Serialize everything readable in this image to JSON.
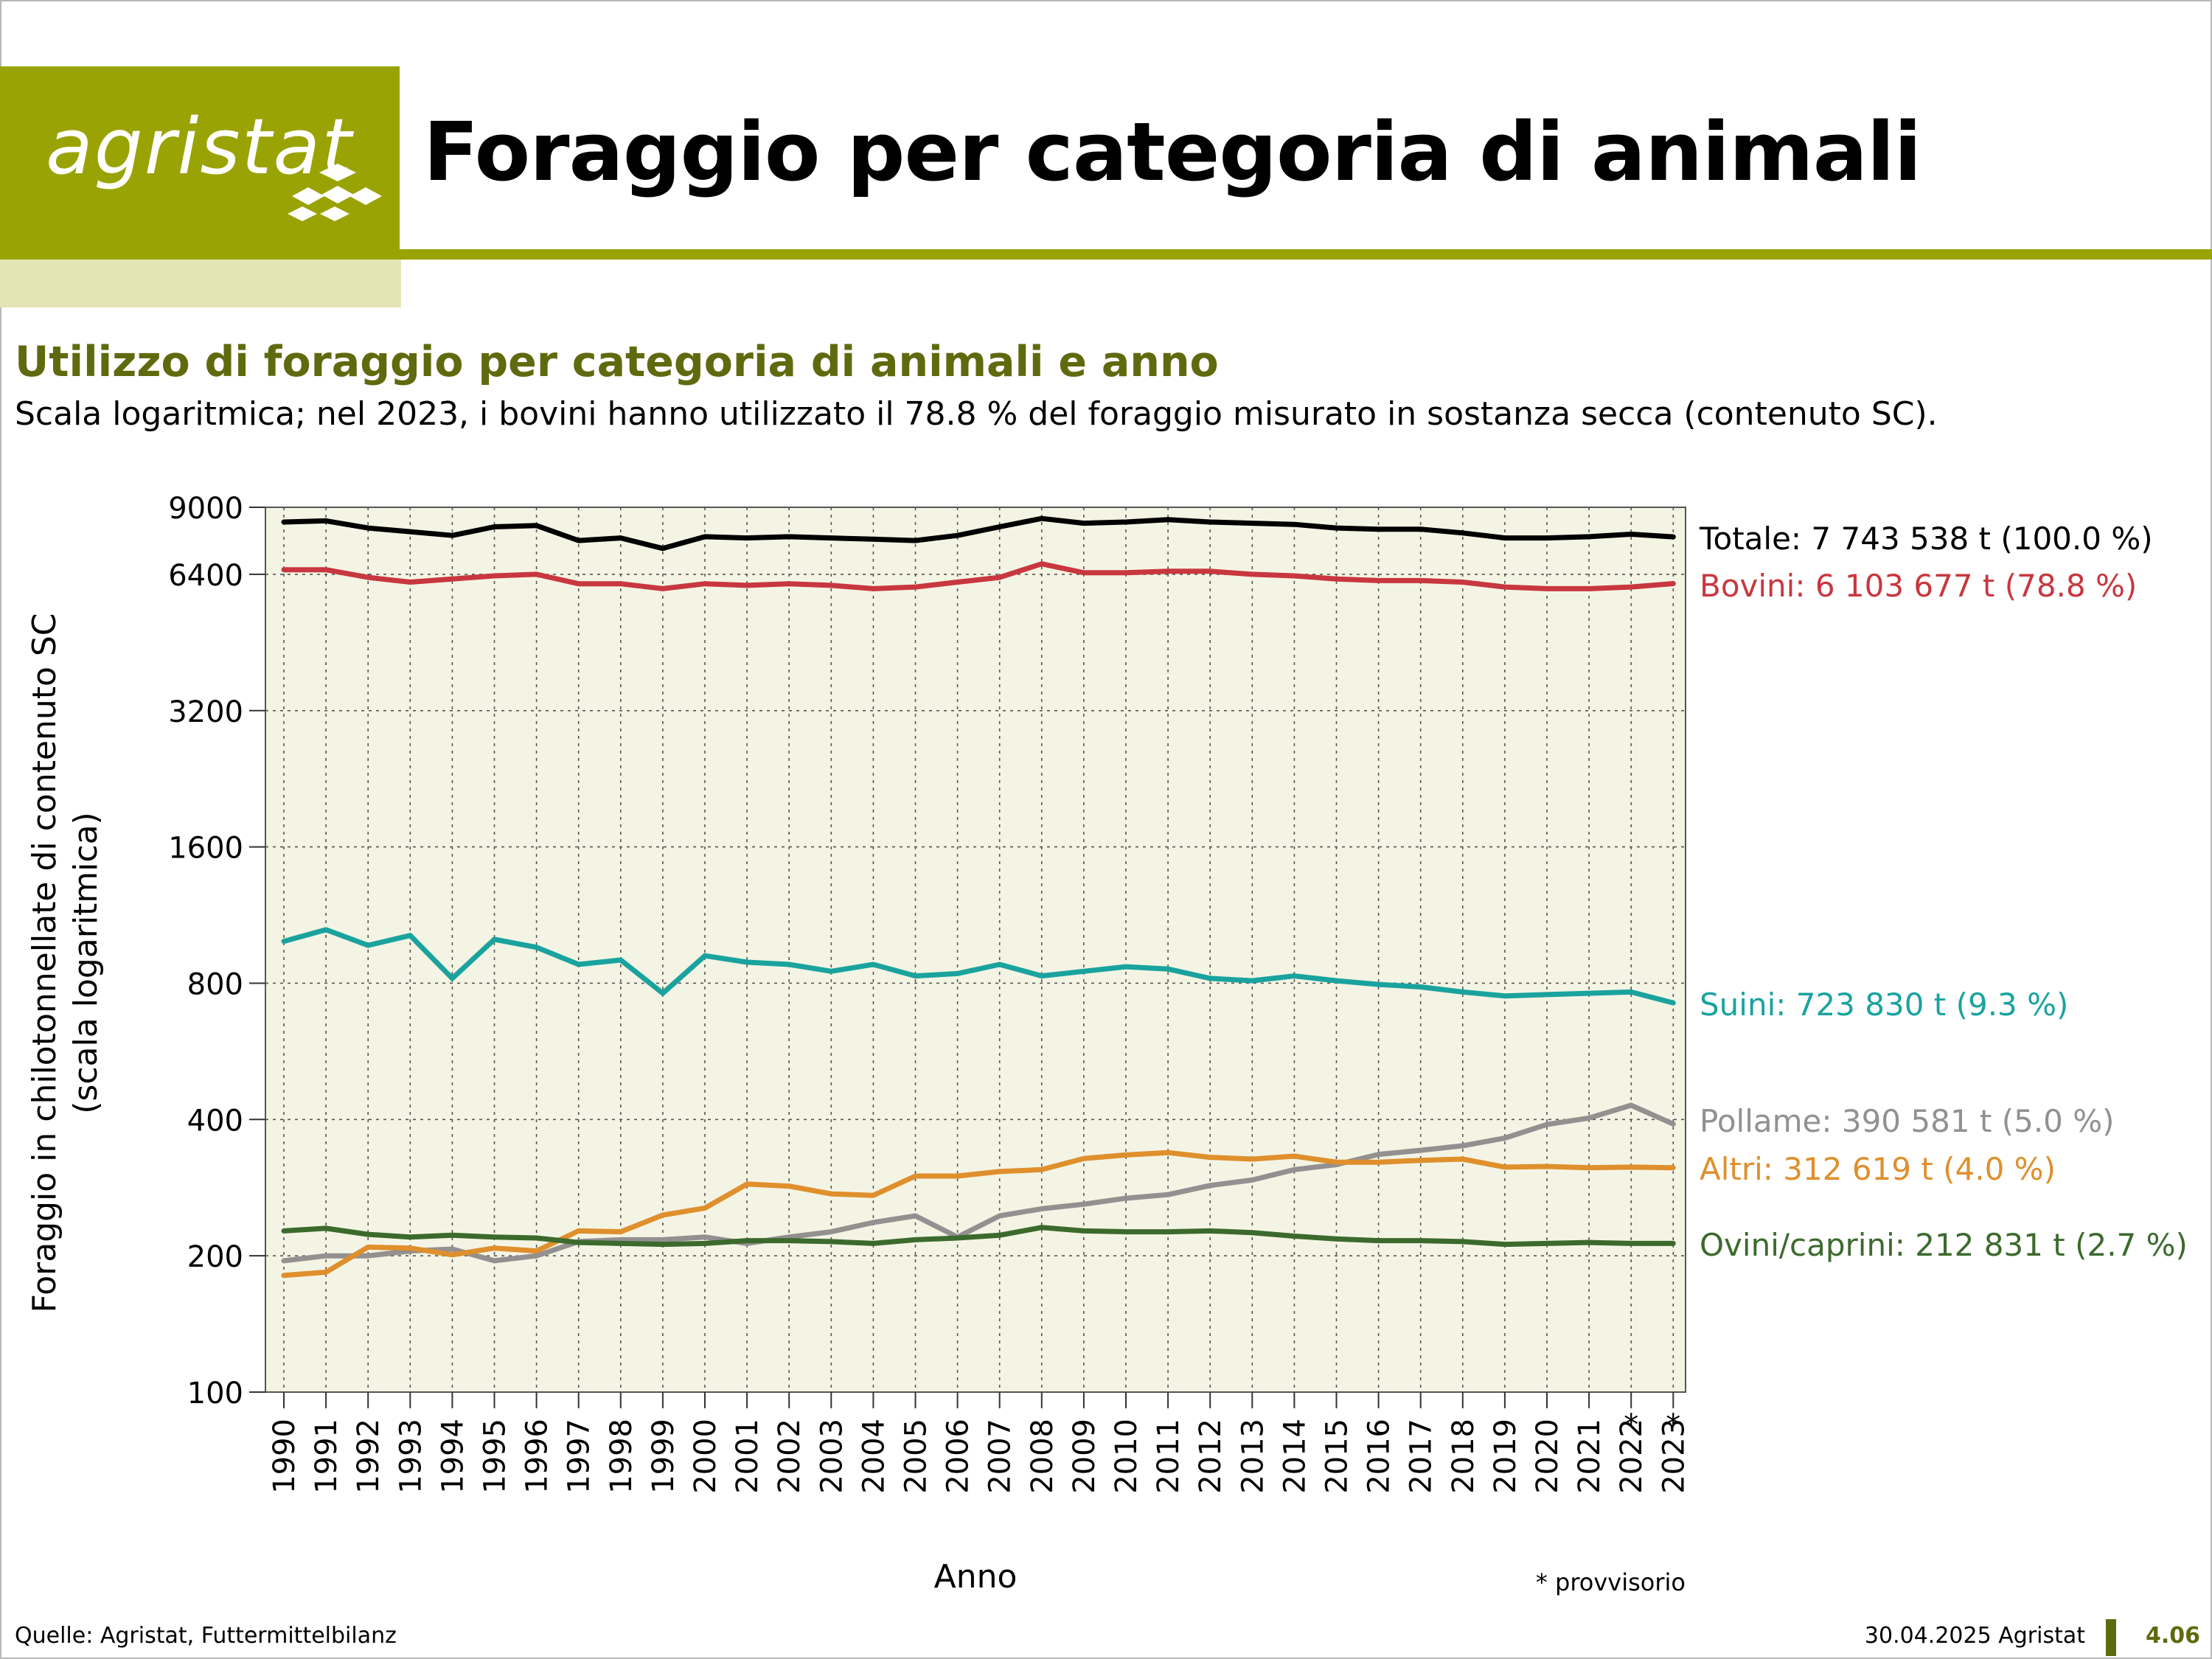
{
  "header": {
    "logo_text": "agristat",
    "title": "Foraggio per categoria di animali"
  },
  "subtitle": "Utilizzo di foraggio per categoria di animali e anno",
  "description": "Scala logaritmica; nel 2023, i bovini hanno utilizzato il 78.8 % del foraggio misurato in sostanza secca (contenuto SC).",
  "footnote": "* provvisorio",
  "footer": {
    "source": "Quelle: Agristat, Futtermittelbilanz",
    "date": "30.04.2025 Agristat",
    "page": "4.06"
  },
  "colors": {
    "brand": "#9aa304",
    "brand_light": "#e3e5b5",
    "brand_dark": "#5f6a0e",
    "plot_background": "#f4f4e4"
  },
  "chart_data": {
    "type": "line",
    "title": "",
    "xlabel": "Anno",
    "ylabel_lines": [
      "Foraggio in chilotonnellate di contenuto SC",
      "(scala logaritmica)"
    ],
    "y_scale": "log",
    "ylim": [
      100,
      9000
    ],
    "yticks": [
      100,
      200,
      400,
      800,
      1600,
      3200,
      6400,
      9000
    ],
    "grid": true,
    "x": [
      "1990",
      "1991",
      "1992",
      "1993",
      "1994",
      "1995",
      "1996",
      "1997",
      "1998",
      "1999",
      "2000",
      "2001",
      "2002",
      "2003",
      "2004",
      "2005",
      "2006",
      "2007",
      "2008",
      "2009",
      "2010",
      "2011",
      "2012",
      "2013",
      "2014",
      "2015",
      "2016",
      "2017",
      "2018",
      "2019",
      "2020",
      "2021",
      "2022",
      "2023"
    ],
    "x_marks": [
      "",
      "",
      "",
      "",
      "",
      "",
      "",
      "",
      "",
      "",
      "",
      "",
      "",
      "",
      "",
      "",
      "",
      "",
      "",
      "",
      "",
      "",
      "",
      "",
      "",
      "",
      "",
      "",
      "",
      "",
      "",
      "",
      "*",
      "*"
    ],
    "series": [
      {
        "name": "Totale",
        "label": "Totale: 7 743 538 t (100.0 %)",
        "color": "#000000",
        "values": [
          8350,
          8400,
          8100,
          7950,
          7800,
          8150,
          8200,
          7600,
          7700,
          7300,
          7750,
          7700,
          7750,
          7700,
          7650,
          7600,
          7800,
          8150,
          8500,
          8300,
          8350,
          8450,
          8350,
          8300,
          8250,
          8100,
          8050,
          8050,
          7900,
          7700,
          7700,
          7750,
          7850,
          7744
        ]
      },
      {
        "name": "Bovini",
        "label": "Bovini: 6 103 677 t (78.8 %)",
        "color": "#c8373f",
        "values": [
          6550,
          6550,
          6300,
          6150,
          6250,
          6350,
          6400,
          6100,
          6100,
          5950,
          6100,
          6050,
          6100,
          6050,
          5950,
          6000,
          6150,
          6300,
          6750,
          6450,
          6450,
          6500,
          6500,
          6400,
          6350,
          6250,
          6200,
          6200,
          6150,
          6000,
          5950,
          5950,
          6000,
          6104
        ]
      },
      {
        "name": "Suini",
        "label": "Suini: 723 830 t (9.3 %)",
        "color": "#1aa39e",
        "values": [
          990,
          1050,
          970,
          1020,
          820,
          1000,
          960,
          880,
          900,
          760,
          920,
          890,
          880,
          850,
          880,
          830,
          840,
          880,
          830,
          850,
          870,
          860,
          820,
          810,
          830,
          810,
          795,
          785,
          765,
          750,
          755,
          760,
          765,
          724
        ]
      },
      {
        "name": "Pollame",
        "label": "Pollame: 390 581 t (5.0 %)",
        "color": "#939090",
        "values": [
          195,
          200,
          200,
          205,
          207,
          195,
          200,
          215,
          217,
          217,
          220,
          213,
          220,
          226,
          237,
          245,
          220,
          245,
          254,
          260,
          268,
          273,
          286,
          294,
          310,
          318,
          335,
          342,
          350,
          364,
          390,
          403,
          430,
          391
        ]
      },
      {
        "name": "Altri",
        "label": "Altri: 312 619 t (4.0 %)",
        "color": "#df8f2c",
        "values": [
          181,
          184,
          209,
          208,
          201,
          208,
          205,
          227,
          226,
          246,
          255,
          288,
          285,
          274,
          272,
          300,
          300,
          307,
          310,
          328,
          334,
          338,
          330,
          327,
          332,
          322,
          322,
          325,
          327,
          314,
          315,
          313,
          314,
          313
        ]
      },
      {
        "name": "Ovini/caprini",
        "label": "Ovini/caprini: 212 831 t (2.7 %)",
        "color": "#3c6a2d",
        "values": [
          227,
          230,
          223,
          220,
          222,
          220,
          219,
          214,
          213,
          212,
          213,
          216,
          216,
          215,
          213,
          217,
          219,
          222,
          231,
          227,
          226,
          226,
          227,
          225,
          221,
          218,
          216,
          216,
          215,
          212,
          213,
          214,
          213,
          213
        ]
      }
    ]
  }
}
